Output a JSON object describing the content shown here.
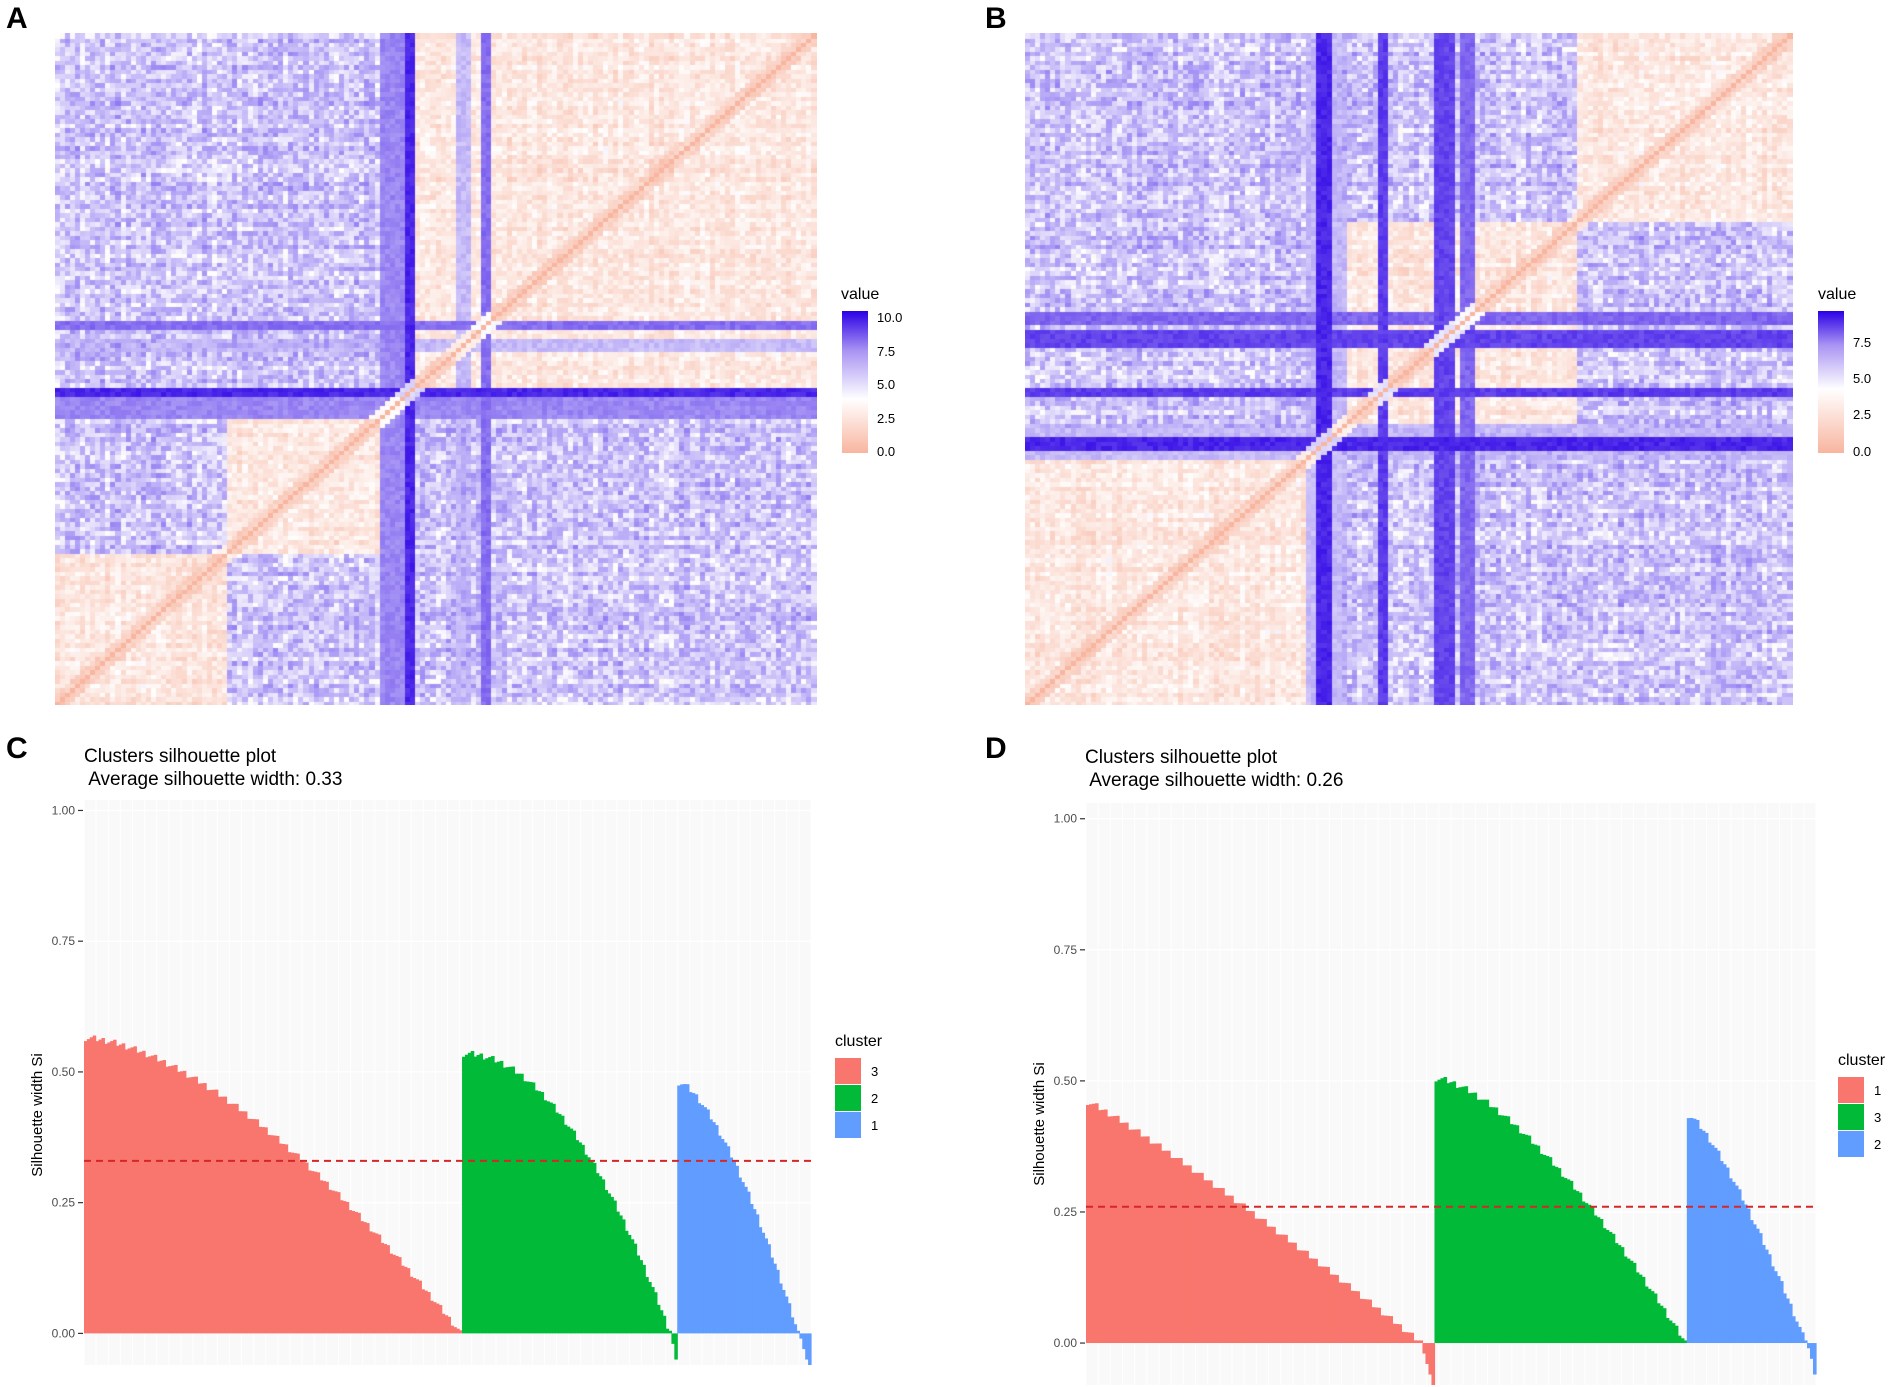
{
  "panels": {
    "A": {
      "label": "A",
      "legend_title": "value",
      "ticks": [
        "10.0",
        "7.5",
        "5.0",
        "2.5",
        "0.0"
      ]
    },
    "B": {
      "label": "B",
      "legend_title": "value",
      "ticks": [
        "7.5",
        "5.0",
        "2.5",
        "0.0"
      ]
    },
    "C": {
      "label": "C"
    },
    "D": {
      "label": "D"
    }
  },
  "colors": {
    "low": "#f8b59f",
    "mid": "#ffffff",
    "high": "#2b00e6",
    "cluster1": "#f8766d",
    "cluster2": "#00ba38",
    "cluster3": "#619cff",
    "avg_line": "#d62728"
  },
  "chart_data": [
    {
      "panel": "A",
      "type": "heatmap",
      "title": "",
      "legend_title": "value",
      "scale": {
        "min": 0.0,
        "max": 10.0,
        "ticks": [
          0.0,
          2.5,
          5.0,
          7.5,
          10.0
        ]
      }
    },
    {
      "panel": "B",
      "type": "heatmap",
      "title": "",
      "legend_title": "value",
      "scale": {
        "min": 0.0,
        "max": 8.5,
        "ticks": [
          0.0,
          2.5,
          5.0,
          7.5
        ]
      }
    },
    {
      "panel": "C",
      "type": "bar",
      "title": "Clusters silhouette plot",
      "subtitle": " Average silhouette width: 0.33",
      "ylabel": "Silhouette width Si",
      "xlabel": "",
      "ylim": [
        -0.07,
        1.02
      ],
      "yticks": [
        "0.00",
        "0.25",
        "0.50",
        "0.75",
        "1.00"
      ],
      "average": 0.33,
      "legend_title": "cluster",
      "series": [
        {
          "name": "3",
          "color_key": "cluster1",
          "n": 130,
          "start": 0.565,
          "end": 0.0,
          "curve": 1.6,
          "neg": []
        },
        {
          "name": "2",
          "color_key": "cluster2",
          "n": 72,
          "start": 0.535,
          "end": 0.0,
          "curve": 2.0,
          "neg": [
            -0.02,
            -0.05
          ]
        },
        {
          "name": "1",
          "color_key": "cluster3",
          "n": 42,
          "start": 0.48,
          "end": 0.0,
          "curve": 1.5,
          "neg": [
            -0.01,
            -0.03,
            -0.05,
            -0.07
          ]
        }
      ]
    },
    {
      "panel": "D",
      "type": "bar",
      "title": "Clusters silhouette plot",
      "subtitle": " Average silhouette width: 0.26",
      "ylabel": "Silhouette width Si",
      "xlabel": "",
      "ylim": [
        -0.08,
        1.03
      ],
      "yticks": [
        "0.00",
        "0.25",
        "0.50",
        "0.75",
        "1.00"
      ],
      "average": 0.26,
      "legend_title": "cluster",
      "series": [
        {
          "name": "1",
          "color_key": "cluster1",
          "n": 112,
          "start": 0.46,
          "end": 0.0,
          "curve": 1.1,
          "neg": [
            -0.02,
            -0.04,
            -0.06,
            -0.08
          ]
        },
        {
          "name": "3",
          "color_key": "cluster2",
          "n": 84,
          "start": 0.505,
          "end": 0.0,
          "curve": 1.5,
          "neg": []
        },
        {
          "name": "2",
          "color_key": "cluster3",
          "n": 40,
          "start": 0.435,
          "end": 0.0,
          "curve": 1.3,
          "neg": [
            -0.01,
            -0.03,
            -0.06
          ]
        }
      ]
    }
  ]
}
